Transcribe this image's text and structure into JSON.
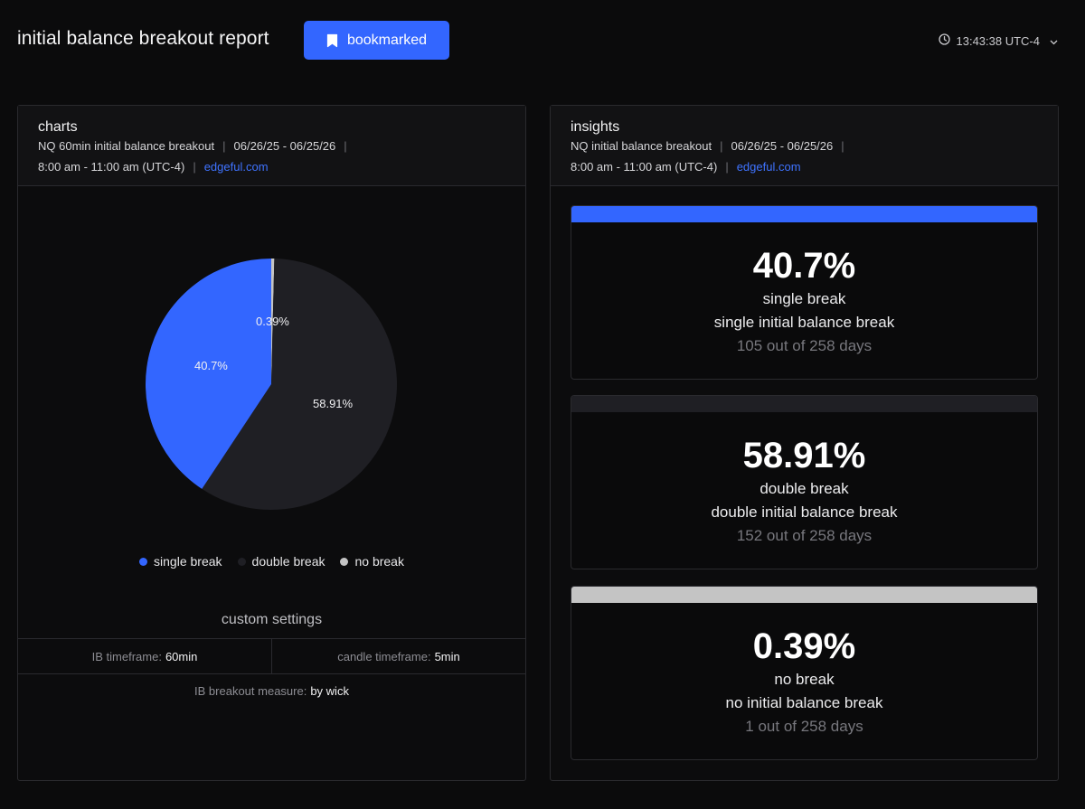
{
  "header": {
    "title": "initial balance breakout report",
    "bookmark_label": "bookmarked",
    "time": "13:43:38 UTC-4"
  },
  "colors": {
    "accent": "#3366ff",
    "single_break": "#3366ff",
    "double_break": "#1f1f24",
    "no_break": "#c4c4c4"
  },
  "charts_panel": {
    "title": "charts",
    "meta_line1_a": "NQ 60min initial balance breakout",
    "meta_line1_b": "06/26/25 - 06/25/26",
    "meta_line2_a": "8:00 am - 11:00 am (UTC-4)",
    "meta_link": "edgeful.com",
    "custom_settings_title": "custom settings",
    "settings": {
      "ib_timeframe_label": "IB timeframe:",
      "ib_timeframe_value": "60min",
      "candle_timeframe_label": "candle timeframe:",
      "candle_timeframe_value": "5min",
      "breakout_measure_label": "IB breakout measure:",
      "breakout_measure_value": "by wick"
    }
  },
  "chart_data": {
    "type": "pie",
    "slices": [
      {
        "name": "no break",
        "value": 0.39,
        "label": "0.39%",
        "color": "#c4c4c4"
      },
      {
        "name": "double break",
        "value": 58.91,
        "label": "58.91%",
        "color": "#1f1f24"
      },
      {
        "name": "single break",
        "value": 40.7,
        "label": "40.7%",
        "color": "#3366ff"
      }
    ],
    "legend": [
      "single break",
      "double break",
      "no break"
    ],
    "legend_placement": "bottom"
  },
  "insights_panel": {
    "title": "insights",
    "meta_line1_a": "NQ initial balance breakout",
    "meta_line1_b": "06/26/25 - 06/25/26",
    "meta_line2_a": "8:00 am - 11:00 am (UTC-4)",
    "meta_link": "edgeful.com",
    "cards": [
      {
        "percent": "40.7%",
        "name": "single break",
        "desc": "single initial balance break",
        "days": "105 out of 258 days",
        "color": "#3366ff"
      },
      {
        "percent": "58.91%",
        "name": "double break",
        "desc": "double initial balance break",
        "days": "152 out of 258 days",
        "color": "#1f1f24"
      },
      {
        "percent": "0.39%",
        "name": "no break",
        "desc": "no initial balance break",
        "days": "1 out of 258 days",
        "color": "#c4c4c4"
      }
    ]
  }
}
